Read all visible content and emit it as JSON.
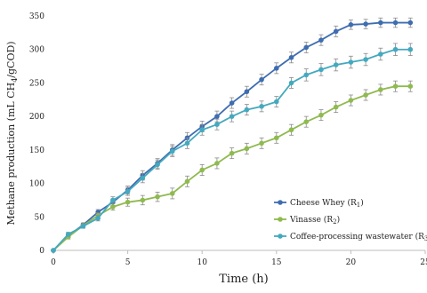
{
  "chart_data": {
    "type": "line",
    "title": "",
    "xlabel": "Time (h)",
    "ylabel": "Methane production  (mL CH4/gCOD)",
    "ylabel_parts": {
      "before": "Methane production  (mL CH",
      "sub": "4",
      "after": "/gCOD)"
    },
    "xlim": [
      0,
      25
    ],
    "ylim": [
      0,
      350
    ],
    "xticks": [
      0,
      5,
      10,
      15,
      20,
      25
    ],
    "yticks": [
      0,
      50,
      100,
      150,
      200,
      250,
      300,
      350
    ],
    "grid": false,
    "legend_position": "center-right",
    "x": [
      0,
      1,
      2,
      3,
      4,
      5,
      6,
      7,
      8,
      9,
      10,
      11,
      12,
      13,
      14,
      15,
      16,
      17,
      18,
      19,
      20,
      21,
      22,
      23,
      24
    ],
    "series": [
      {
        "name": "Cheese Whey (R1)",
        "legend_parts": {
          "before": "Cheese Whey (R",
          "sub": "1",
          "after": ")"
        },
        "color": "#3e6db0",
        "values": [
          0,
          22,
          38,
          57,
          72,
          90,
          112,
          130,
          150,
          168,
          185,
          200,
          220,
          237,
          255,
          272,
          288,
          303,
          314,
          327,
          337,
          338,
          340,
          340,
          340
        ],
        "errors": [
          0,
          3,
          3,
          4,
          5,
          6,
          7,
          7,
          8,
          8,
          8,
          8,
          8,
          8,
          8,
          8,
          8,
          8,
          8,
          8,
          7,
          7,
          7,
          7,
          7
        ]
      },
      {
        "name": "Vinasse (R2)",
        "legend_parts": {
          "before": "Vinasse (R",
          "sub": "2",
          "after": ")"
        },
        "color": "#8fba4f",
        "values": [
          0,
          20,
          37,
          52,
          65,
          72,
          75,
          80,
          85,
          103,
          120,
          130,
          145,
          152,
          160,
          168,
          180,
          192,
          202,
          214,
          224,
          232,
          240,
          245,
          245
        ],
        "errors": [
          0,
          3,
          3,
          4,
          5,
          6,
          7,
          7,
          8,
          8,
          8,
          8,
          8,
          8,
          8,
          8,
          8,
          8,
          8,
          8,
          8,
          8,
          8,
          8,
          8
        ]
      },
      {
        "name": "Coffee-processing wastewater (R3)",
        "legend_parts": {
          "before": "Coffee-processing wastewater (R",
          "sub": "3",
          "after": ")"
        },
        "color": "#44a9bf",
        "values": [
          0,
          24,
          36,
          48,
          75,
          88,
          108,
          128,
          148,
          160,
          180,
          188,
          200,
          210,
          215,
          222,
          250,
          262,
          270,
          277,
          281,
          285,
          293,
          300,
          300
        ],
        "errors": [
          0,
          3,
          3,
          4,
          5,
          6,
          7,
          7,
          8,
          8,
          8,
          8,
          8,
          8,
          8,
          8,
          8,
          9,
          9,
          9,
          9,
          9,
          9,
          9,
          9
        ]
      }
    ]
  }
}
